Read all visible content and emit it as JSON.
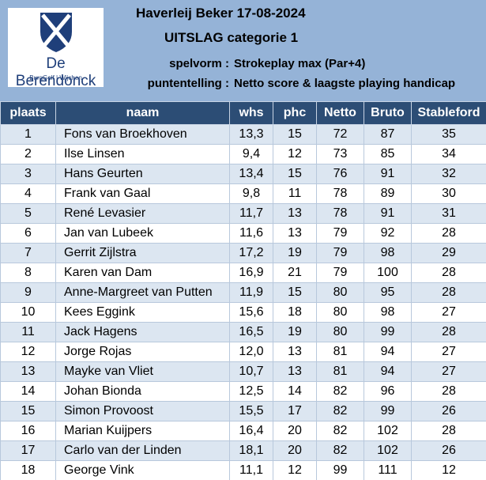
{
  "logo": {
    "name": "De Berendonck",
    "sub": "BurgGolf | Wijchen"
  },
  "header": {
    "title": "Haverleij Beker 17-08-2024",
    "subtitle": "UITSLAG categorie 1",
    "format_label": "spelvorm :",
    "format_value": "Strokeplay max (Par+4)",
    "scoring_label": "puntentelling :",
    "scoring_value": "Netto score & laagste playing handicap"
  },
  "table": {
    "columns": [
      "plaats",
      "naam",
      "whs",
      "phc",
      "Netto",
      "Bruto",
      "Stableford"
    ],
    "rows": [
      [
        1,
        "Fons van Broekhoven",
        "13,3",
        15,
        72,
        87,
        35
      ],
      [
        2,
        "Ilse Linsen",
        "9,4",
        12,
        73,
        85,
        34
      ],
      [
        3,
        "Hans Geurten",
        "13,4",
        15,
        76,
        91,
        32
      ],
      [
        4,
        "Frank van Gaal",
        "9,8",
        11,
        78,
        89,
        30
      ],
      [
        5,
        "René Levasier",
        "11,7",
        13,
        78,
        91,
        31
      ],
      [
        6,
        "Jan van Lubeek",
        "11,6",
        13,
        79,
        92,
        28
      ],
      [
        7,
        "Gerrit Zijlstra",
        "17,2",
        19,
        79,
        98,
        29
      ],
      [
        8,
        "Karen van Dam",
        "16,9",
        21,
        79,
        100,
        28
      ],
      [
        9,
        "Anne-Margreet van Putten",
        "11,9",
        15,
        80,
        95,
        28
      ],
      [
        10,
        "Kees Eggink",
        "15,6",
        18,
        80,
        98,
        27
      ],
      [
        11,
        "Jack Hagens",
        "16,5",
        19,
        80,
        99,
        28
      ],
      [
        12,
        "Jorge Rojas",
        "12,0",
        13,
        81,
        94,
        27
      ],
      [
        13,
        "Mayke van Vliet",
        "10,7",
        13,
        81,
        94,
        27
      ],
      [
        14,
        "Johan Bionda",
        "12,5",
        14,
        82,
        96,
        28
      ],
      [
        15,
        "Simon Provoost",
        "15,5",
        17,
        82,
        99,
        26
      ],
      [
        16,
        "Marian Kuijpers",
        "16,4",
        20,
        82,
        102,
        28
      ],
      [
        17,
        "Carlo van der Linden",
        "18,1",
        20,
        82,
        102,
        26
      ],
      [
        18,
        "George Vink",
        "11,1",
        12,
        99,
        111,
        12
      ]
    ]
  }
}
